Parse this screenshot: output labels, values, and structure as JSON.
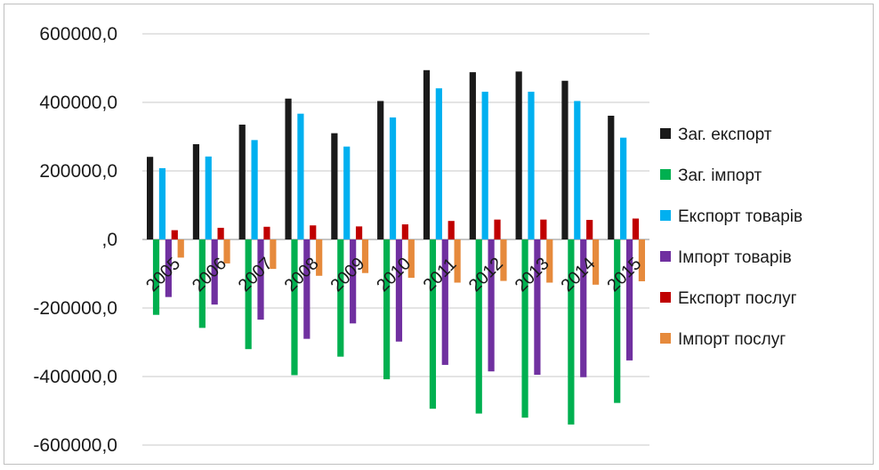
{
  "chart_data": {
    "type": "bar",
    "title": "",
    "xlabel": "",
    "ylabel": "",
    "ylim": [
      -600000,
      600000
    ],
    "y_ticks": [
      600000,
      400000,
      200000,
      0,
      -200000,
      -400000,
      -600000
    ],
    "y_tick_labels": [
      "600000,0",
      "400000,0",
      "200000,0",
      ",0",
      "-200000,0",
      "-400000,0",
      "-600000,0"
    ],
    "grid": true,
    "legend_position": "right",
    "categories": [
      "2005",
      "2006",
      "2007",
      "2008",
      "2009",
      "2010",
      "2011",
      "2012",
      "2013",
      "2014",
      "2015"
    ],
    "series": [
      {
        "name": "Заг. експорт",
        "color": "#1a1a1a",
        "values": [
          241000,
          278000,
          335000,
          411000,
          310000,
          404000,
          494000,
          488000,
          490000,
          463000,
          361000
        ]
      },
      {
        "name": "Заг. імпорт",
        "color": "#00b050",
        "values": [
          -220000,
          -258000,
          -320000,
          -396000,
          -342000,
          -408000,
          -494000,
          -508000,
          -520000,
          -540000,
          -477000
        ]
      },
      {
        "name": "Експорт товарів",
        "color": "#00b0f0",
        "values": [
          208000,
          242000,
          290000,
          367000,
          271000,
          356000,
          441000,
          431000,
          431000,
          404000,
          297000
        ]
      },
      {
        "name": "Імпорт товарів",
        "color": "#7030a0",
        "values": [
          -168000,
          -190000,
          -234000,
          -290000,
          -245000,
          -298000,
          -366000,
          -385000,
          -395000,
          -402000,
          -353000
        ]
      },
      {
        "name": "Експорт послуг",
        "color": "#c00000",
        "values": [
          27000,
          34000,
          37000,
          41000,
          38000,
          44000,
          54000,
          58000,
          58000,
          57000,
          61000
        ]
      },
      {
        "name": "Імпорт послуг",
        "color": "#e68a3c",
        "values": [
          -53000,
          -70000,
          -86000,
          -106000,
          -98000,
          -112000,
          -126000,
          -121000,
          -126000,
          -132000,
          -122000
        ]
      }
    ]
  }
}
